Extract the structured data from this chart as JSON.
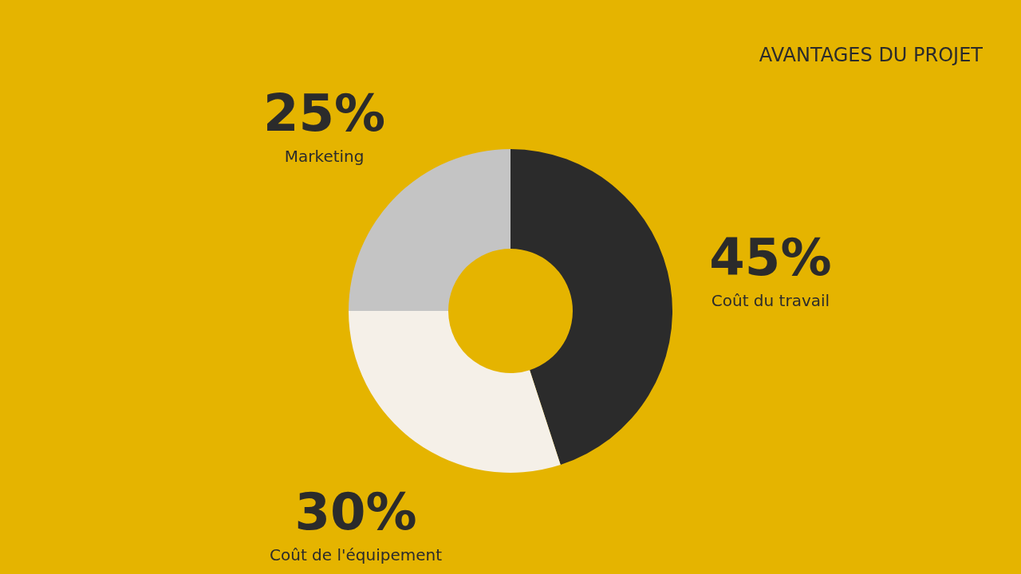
{
  "chart_data": {
    "type": "donut",
    "title": "AVANTAGES DU PROJET",
    "categories": [
      "Coût du travail",
      "Coût de l'équipement",
      "Marketing"
    ],
    "values": [
      45,
      30,
      25
    ],
    "colors": [
      "#2b2b2b",
      "#f5f0e8",
      "#c4c4c4"
    ],
    "value_labels": [
      "45%",
      "30%",
      "25%"
    ],
    "legend": false
  }
}
